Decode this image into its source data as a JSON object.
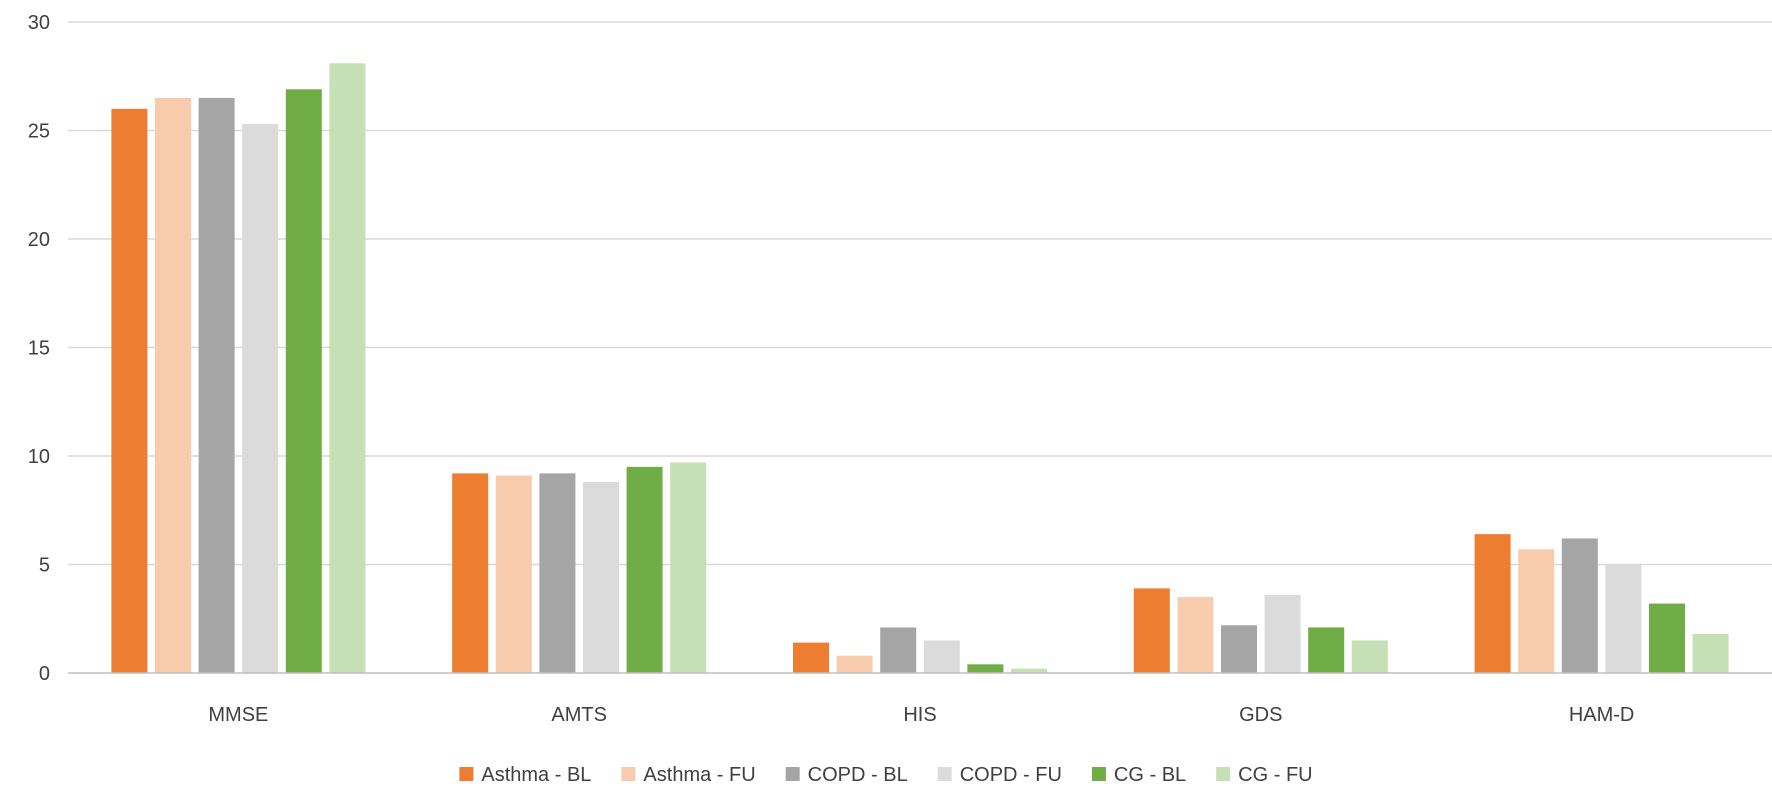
{
  "chart_data": {
    "type": "bar",
    "title": "",
    "xlabel": "",
    "ylabel": "",
    "categories": [
      "MMSE",
      "AMTS",
      "HIS",
      "GDS",
      "HAM-D"
    ],
    "ylim": [
      0,
      30
    ],
    "yticks": [
      "0",
      "5",
      "10",
      "15",
      "20",
      "25",
      "30"
    ],
    "grid": true,
    "legend_position": "bottom",
    "series": [
      {
        "name": "Asthma - BL",
        "color": "#ED7D31",
        "values": [
          26.0,
          9.2,
          1.4,
          3.9,
          6.4
        ]
      },
      {
        "name": "Asthma - FU",
        "color": "#F8CBAD",
        "values": [
          26.5,
          9.1,
          0.8,
          3.5,
          5.7
        ]
      },
      {
        "name": "COPD - BL",
        "color": "#A5A5A5",
        "values": [
          26.5,
          9.2,
          2.1,
          2.2,
          6.2
        ]
      },
      {
        "name": "COPD - FU",
        "color": "#DBDBDB",
        "values": [
          25.3,
          8.8,
          1.5,
          3.6,
          5.0
        ]
      },
      {
        "name": "CG - BL",
        "color": "#70AD47",
        "values": [
          26.9,
          9.5,
          0.4,
          2.1,
          3.2
        ]
      },
      {
        "name": "CG - FU",
        "color": "#C5E0B4",
        "values": [
          28.1,
          9.7,
          0.2,
          1.5,
          1.8
        ]
      }
    ]
  }
}
